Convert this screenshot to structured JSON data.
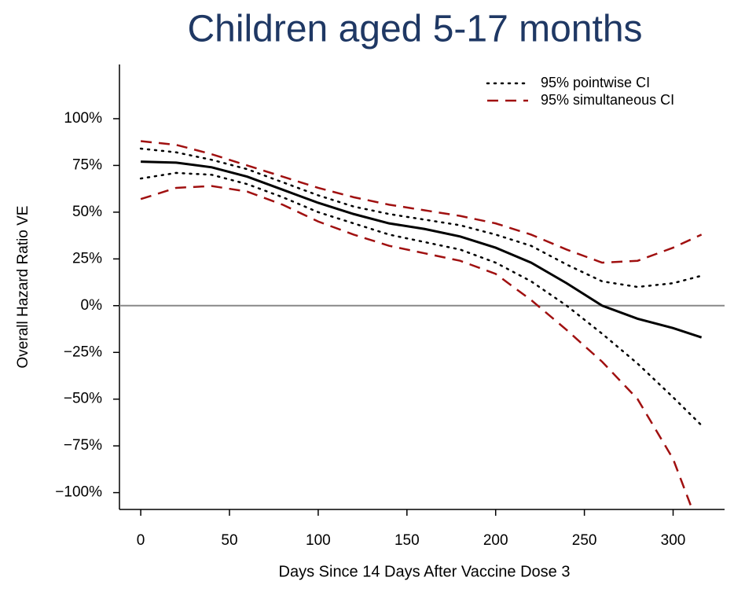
{
  "chart_data": {
    "type": "line",
    "title": "Children aged 5-17 months",
    "xlabel": "Days Since 14 Days After Vaccine Dose 3",
    "ylabel": "Overall Hazard Ratio VE",
    "x": [
      0,
      20,
      40,
      60,
      80,
      100,
      120,
      140,
      160,
      180,
      200,
      220,
      240,
      260,
      280,
      300,
      316
    ],
    "series": [
      {
        "color": "#000000",
        "values": [
          77,
          76.5,
          74,
          69,
          62,
          55,
          49,
          44,
          41,
          37,
          31,
          23,
          12,
          0,
          -7,
          -12,
          -17
        ]
      },
      {
        "name": "95% pointwise CI",
        "color": "#000000",
        "dash": "dotted",
        "upper": [
          84,
          82,
          78,
          73,
          66,
          59,
          53,
          49,
          46,
          43,
          38,
          32,
          22,
          13,
          10,
          12,
          16
        ],
        "lower": [
          68,
          71,
          70,
          65,
          58,
          50,
          44,
          38,
          34,
          30,
          23,
          13,
          0,
          -15,
          -31,
          -49,
          -64
        ]
      },
      {
        "name": "95% simultaneous CI",
        "color": "#a01010",
        "dash": "dashed",
        "upper": [
          88,
          86,
          81,
          75,
          69,
          63,
          58,
          54,
          51,
          48,
          44,
          38,
          30,
          23,
          24,
          31,
          38
        ],
        "lower": [
          57,
          63,
          64,
          61,
          54,
          45,
          38,
          32,
          28,
          24,
          17,
          3,
          -13,
          -30,
          -50,
          -82,
          -122
        ]
      }
    ],
    "reference_line": 0,
    "xlim": [
      -12,
      329
    ],
    "ylim": [
      -109,
      129
    ],
    "xticks": [
      0,
      50,
      100,
      150,
      200,
      250,
      300
    ],
    "yticks": [
      {
        "value": -100,
        "label": "−100%"
      },
      {
        "value": -75,
        "label": "−75%"
      },
      {
        "value": -50,
        "label": "−50%"
      },
      {
        "value": -25,
        "label": "−25%"
      },
      {
        "value": 0,
        "label": "0%"
      },
      {
        "value": 25,
        "label": "25%"
      },
      {
        "value": 50,
        "label": "50%"
      },
      {
        "value": 75,
        "label": "75%"
      },
      {
        "value": 100,
        "label": "100%"
      }
    ],
    "legend": "top-right"
  }
}
